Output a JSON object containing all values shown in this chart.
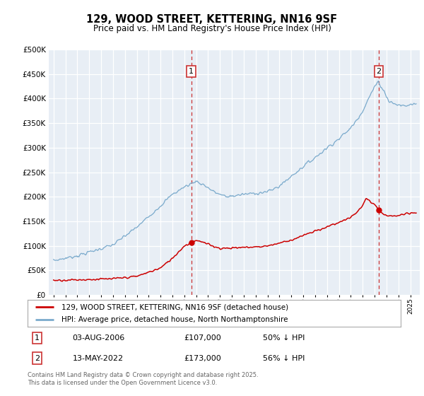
{
  "title_line1": "129, WOOD STREET, KETTERING, NN16 9SF",
  "title_line2": "Price paid vs. HM Land Registry's House Price Index (HPI)",
  "plot_bg_color": "#e8eef5",
  "red_line_color": "#cc0000",
  "blue_line_color": "#7aaacc",
  "vline_color": "#cc3333",
  "legend_label_red": "129, WOOD STREET, KETTERING, NN16 9SF (detached house)",
  "legend_label_blue": "HPI: Average price, detached house, North Northamptonshire",
  "annotation1_date": "03-AUG-2006",
  "annotation1_price": "£107,000",
  "annotation1_note": "50% ↓ HPI",
  "annotation2_date": "13-MAY-2022",
  "annotation2_price": "£173,000",
  "annotation2_note": "56% ↓ HPI",
  "footer_text": "Contains HM Land Registry data © Crown copyright and database right 2025.\nThis data is licensed under the Open Government Licence v3.0.",
  "sale1_x": 2006.58,
  "sale1_y": 107000,
  "sale2_x": 2022.36,
  "sale2_y": 173000,
  "ylim": [
    0,
    500000
  ],
  "yticks": [
    0,
    50000,
    100000,
    150000,
    200000,
    250000,
    300000,
    350000,
    400000,
    450000,
    500000
  ],
  "xlim_left": 1994.6,
  "xlim_right": 2025.8
}
